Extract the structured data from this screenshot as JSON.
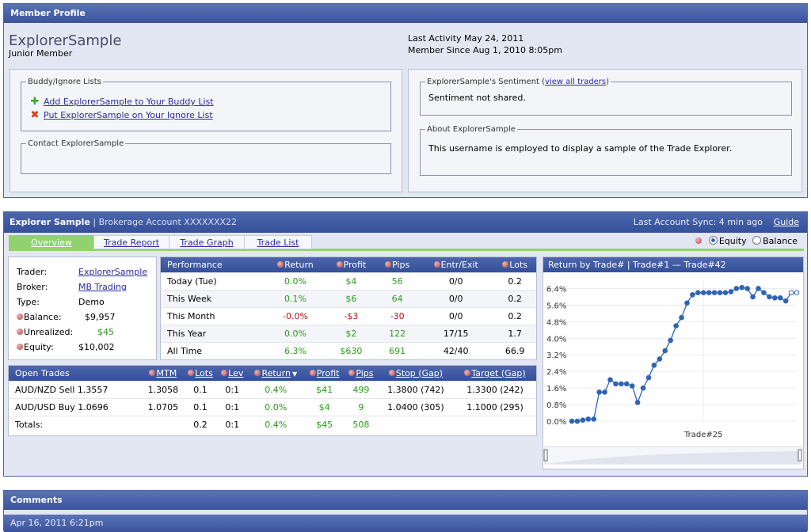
{
  "profile": {
    "header": "Member Profile",
    "name": "ExplorerSample",
    "rank": "Junior Member",
    "last_activity": "Last Activity May 24, 2011",
    "member_since": "Member Since Aug 1, 2010 8:05pm",
    "buddy_legend": "Buddy/Ignore Lists",
    "add_buddy": "Add ExplorerSample to Your Buddy List",
    "ignore": "Put ExplorerSample on Your Ignore List",
    "contact_legend": "Contact ExplorerSample",
    "sentiment_legend": "ExplorerSample's Sentiment (",
    "sentiment_link": "view all traders",
    "sentiment_close": ")",
    "sentiment_text": "Sentiment not shared.",
    "about_legend": "About ExplorerSample",
    "about_text": "This username is employed to display a sample of the Trade Explorer."
  },
  "explorer": {
    "title": "Explorer Sample",
    "account": "| Brokerage Account XXXXXXX22",
    "sync": "Last Account Sync: 4 min ago",
    "guide": "Guide",
    "tabs": [
      "Overview",
      "Trade Report",
      "Trade Graph",
      "Trade List"
    ],
    "equity_label": "Equity",
    "balance_label": "Balance",
    "trader_label": "Trader:",
    "trader": "ExplorerSample",
    "broker_label": "Broker:",
    "broker": "MB Trading",
    "type_label": "Type:",
    "type": "Demo",
    "balance_k": "Balance:",
    "balance": "$9,957",
    "unrealized_k": "Unrealized:",
    "unrealized": "$45",
    "equity_k": "Equity:",
    "equity": "$10,002"
  },
  "performance": {
    "headers": [
      "Performance",
      "Return",
      "Profit",
      "Pips",
      "Entr/Exit",
      "Lots"
    ],
    "rows": [
      [
        "Today (Tue)",
        "0.0%",
        "$4",
        "56",
        "0/0",
        "0.2"
      ],
      [
        "This Week",
        "0.1%",
        "$6",
        "64",
        "0/0",
        "0.2"
      ],
      [
        "This Month",
        "-0.0%",
        "-$3",
        "-30",
        "0/0",
        "0.2"
      ],
      [
        "This Year",
        "0.0%",
        "$2",
        "122",
        "17/15",
        "1.7"
      ],
      [
        "All Time",
        "6.3%",
        "$630",
        "691",
        "42/40",
        "66.9"
      ]
    ]
  },
  "open_trades": {
    "headers": [
      "Open Trades",
      "MTM",
      "Lots",
      "Lev",
      "Return",
      "Profit",
      "Pips",
      "Stop (Gap)",
      "Target (Gap)"
    ],
    "rows": [
      [
        "AUD/NZD Sell 1.3557",
        "1.3058",
        "0.1",
        "0:1",
        "0.4%",
        "$41",
        "499",
        "1.3800 (742)",
        "1.3300 (242)"
      ],
      [
        "AUD/USD Buy 1.0696",
        "1.0705",
        "0.1",
        "0:1",
        "0.0%",
        "$4",
        "9",
        "1.0400 (305)",
        "1.1000 (295)"
      ]
    ],
    "totals": [
      "Totals:",
      "",
      "0.2",
      "0:1",
      "0.4%",
      "$45",
      "508",
      "",
      ""
    ]
  },
  "chart_data": {
    "type": "line",
    "title": "Return by Trade#   |   Trade#1 — Trade#42",
    "xlabel": "Trade#25",
    "ylabel": "",
    "yticks": [
      "6.4%",
      "5.6%",
      "4.8%",
      "4.0%",
      "3.2%",
      "2.4%",
      "1.6%",
      "0.8%",
      "0.0%"
    ],
    "ylim": [
      0,
      6.8
    ],
    "x": [
      1,
      2,
      3,
      4,
      5,
      6,
      7,
      8,
      9,
      10,
      11,
      12,
      13,
      14,
      15,
      16,
      17,
      18,
      19,
      20,
      21,
      22,
      23,
      24,
      25,
      26,
      27,
      28,
      29,
      30,
      31,
      32,
      33,
      34,
      35,
      36,
      37,
      38,
      39,
      40,
      41,
      42
    ],
    "values": [
      0.0,
      0.0,
      0.05,
      0.1,
      0.1,
      1.4,
      1.4,
      2.0,
      1.8,
      1.8,
      1.8,
      1.7,
      0.9,
      1.6,
      2.1,
      2.7,
      3.0,
      3.4,
      3.9,
      4.6,
      5.0,
      5.7,
      6.1,
      6.2,
      6.2,
      6.2,
      6.2,
      6.2,
      6.2,
      6.25,
      6.4,
      6.45,
      6.4,
      6.0,
      6.4,
      6.2,
      6.0,
      5.95,
      5.95,
      5.8,
      6.2,
      6.2
    ],
    "grid": true,
    "legend": "none"
  },
  "comments": {
    "header": "Comments",
    "date": "Apr 16, 2011 6:21pm"
  },
  "colors": {
    "header_blue": "#3a539c",
    "tab_green": "#8fd26f",
    "positive": "#2a9a1a",
    "negative": "#c01010"
  }
}
